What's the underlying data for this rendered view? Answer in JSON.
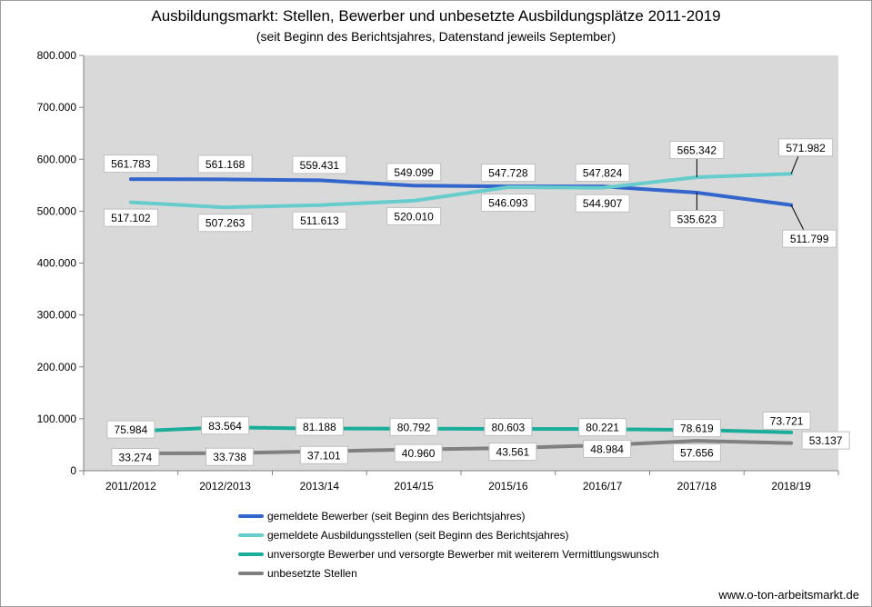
{
  "title": "Ausbildungsmarkt: Stellen, Bewerber und unbesetzte Ausbildungsplätze 2011-2019",
  "subtitle": "(seit Beginn des Berichtsjahres, Datenstand jeweils September)",
  "footer": "www.o-ton-arbeitsmarkt.de",
  "chart_data": {
    "type": "line",
    "title": "Ausbildungsmarkt: Stellen, Bewerber und unbesetzte Ausbildungsplätze 2011-2019",
    "subtitle": "(seit Beginn des Berichtsjahres, Datenstand jeweils September)",
    "categories": [
      "2011/2012",
      "2012/2013",
      "2013/14",
      "2014/15",
      "2015/16",
      "2016/17",
      "2017/18",
      "2018/19"
    ],
    "ylim": [
      0,
      800000
    ],
    "yticks": [
      0,
      100000,
      200000,
      300000,
      400000,
      500000,
      600000,
      700000,
      800000
    ],
    "ytick_labels": [
      "0",
      "100.000",
      "200.000",
      "300.000",
      "400.000",
      "500.000",
      "600.000",
      "700.000",
      "800.000"
    ],
    "grid": false,
    "legend_position": "bottom",
    "series": [
      {
        "name": "gemeldete Bewerber (seit Beginn des Berichtsjahres)",
        "color": "#3366cc",
        "values": [
          561783,
          561168,
          559431,
          549099,
          547728,
          547824,
          535623,
          511799
        ],
        "labels": [
          "561.783",
          "561.168",
          "559.431",
          "549.099",
          "547.728",
          "547.824",
          "535.623",
          "511.799"
        ]
      },
      {
        "name": "gemeldete Ausbildungsstellen (seit Beginn des Berichtsjahres)",
        "color": "#66cccc",
        "values": [
          517102,
          507263,
          511613,
          520010,
          546093,
          544907,
          565342,
          571982
        ],
        "labels": [
          "517.102",
          "507.263",
          "511.613",
          "520.010",
          "546.093",
          "544.907",
          "565.342",
          "571.982"
        ]
      },
      {
        "name": "unversorgte Bewerber und versorgte Bewerber mit weiterem Vermittlungswunsch",
        "color": "#1aae9a",
        "values": [
          75984,
          83564,
          81188,
          80792,
          80603,
          80221,
          78619,
          73721
        ],
        "labels": [
          "75.984",
          "83.564",
          "81.188",
          "80.792",
          "80.603",
          "80.221",
          "78.619",
          "73.721"
        ]
      },
      {
        "name": "unbesetzte Stellen",
        "color": "#808080",
        "values": [
          33274,
          33738,
          37101,
          40960,
          43561,
          48984,
          57656,
          53137
        ],
        "labels": [
          "33.274",
          "33.738",
          "37.101",
          "40.960",
          "43.561",
          "48.984",
          "57.656",
          "53.137"
        ]
      }
    ]
  }
}
